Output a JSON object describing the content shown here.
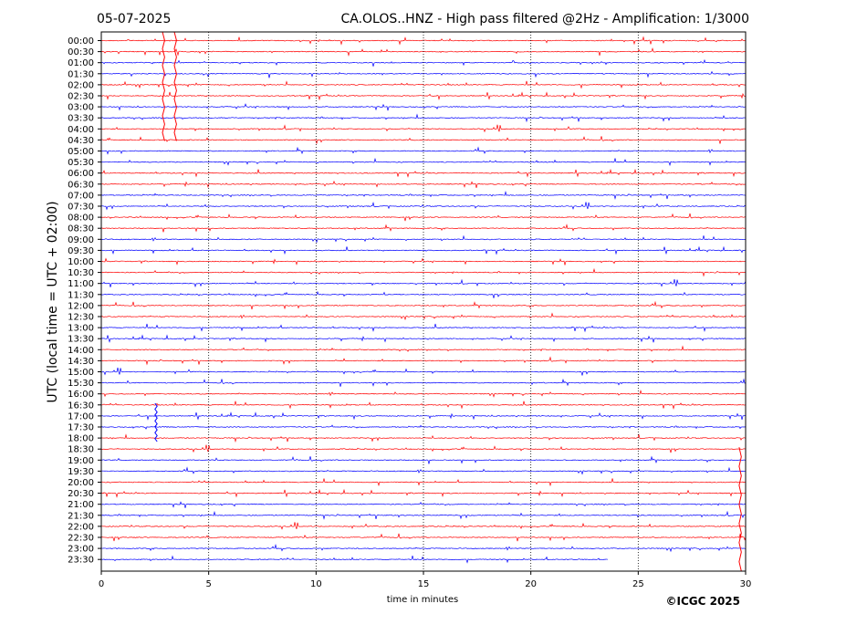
{
  "header": {
    "date": "05-07-2025",
    "title": "CA.OLOS..HNZ - High pass filtered @2Hz - Amplification: 1/3000"
  },
  "footer": {
    "copyright": "©ICGC 2025"
  },
  "colors": {
    "red_trace": "#ff0000",
    "blue_trace": "#0000ff",
    "grid": "#000000",
    "background": "#ffffff"
  },
  "chart_data": {
    "type": "line",
    "title": "CA.OLOS..HNZ - High pass filtered @2Hz - Amplification: 1/3000",
    "xlabel": "time in minutes",
    "ylabel": "UTC (local time = UTC + 02:00)",
    "xlim": [
      0,
      30
    ],
    "x_ticks": [
      "0",
      "5",
      "10",
      "15",
      "20",
      "25",
      "30"
    ],
    "x_tick_values": [
      0,
      5,
      10,
      15,
      20,
      25,
      30
    ],
    "vertical_grid_minutes": [
      5,
      10,
      15,
      20,
      25
    ],
    "grid": true,
    "trace_color_pattern": [
      "red",
      "red",
      "blue",
      "blue"
    ],
    "rows": [
      "00:00",
      "00:30",
      "01:00",
      "01:30",
      "02:00",
      "02:30",
      "03:00",
      "03:30",
      "04:00",
      "04:30",
      "05:00",
      "05:30",
      "06:00",
      "06:30",
      "07:00",
      "07:30",
      "08:00",
      "08:30",
      "09:00",
      "09:30",
      "10:00",
      "10:30",
      "11:00",
      "11:30",
      "12:00",
      "12:30",
      "13:00",
      "13:30",
      "14:00",
      "14:30",
      "15:00",
      "15:30",
      "16:00",
      "16:30",
      "17:00",
      "17:30",
      "18:00",
      "18:30",
      "19:00",
      "19:30",
      "20:00",
      "20:30",
      "21:00",
      "21:30",
      "22:00",
      "22:30",
      "23:00",
      "23:30"
    ],
    "last_row_end_minute": 23.6,
    "large_events": [
      {
        "row": "00:00",
        "minute": 2.9
      },
      {
        "row": "00:00",
        "minute": 3.45
      },
      {
        "row": "17:30",
        "minute": 2.55
      },
      {
        "row": "18:30",
        "minute": 29.75
      }
    ]
  }
}
